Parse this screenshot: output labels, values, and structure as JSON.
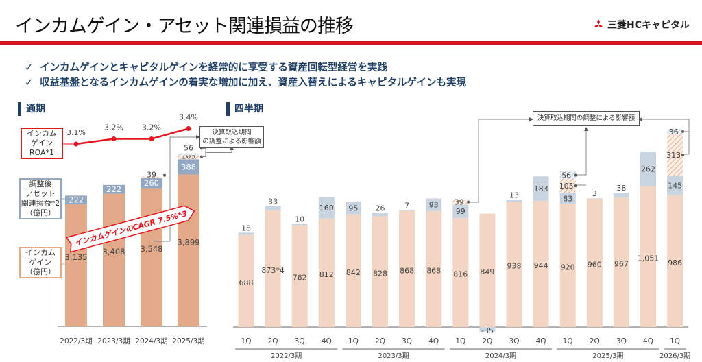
{
  "header": {
    "title": "インカムゲイン・アセット関連損益の推移",
    "logo_text": "三菱HCキャピタル"
  },
  "bullets": [
    "インカムゲインとキャピタルゲインを経常的に享受する資産回転型経営を実践",
    "収益基盤となるインカムゲインの着実な増加に加え、資産入替えによるキャピタルゲインも実現"
  ],
  "sections": {
    "annual": "通期",
    "quarterly": "四半期"
  },
  "legend": {
    "roa": [
      "インカム",
      "ゲイン",
      "ROA*1"
    ],
    "adjusted": [
      "調整後",
      "アセット",
      "関連損益*2",
      "（億円）"
    ],
    "income": [
      "インカム",
      "ゲイン",
      "（億円）"
    ]
  },
  "callouts": {
    "annual": [
      "決算取込期間",
      "の調整による影響額"
    ],
    "quarterly": "決算取込期間の調整による影響額"
  },
  "cagr_label": "インカムゲインのCAGR 7.5%*3",
  "colors": {
    "income_annual": "#e2aa88",
    "adjusted_annual": "#93a9c3",
    "income_q": "#f2d5c3",
    "adjusted_q": "#c8d5e1",
    "roa": "#e8141e",
    "accent": "#1f3f66"
  },
  "chart_data": [
    {
      "type": "bar",
      "title": "通期",
      "stacked": true,
      "categories": [
        "2022/3期",
        "2023/3期",
        "2024/3期",
        "2025/3期"
      ],
      "series": [
        {
          "name": "インカムゲイン（億円）",
          "values": [
            3135,
            3408,
            3548,
            3899
          ],
          "labels": [
            "3,135",
            "3,408",
            "3,548",
            "3,899"
          ]
        },
        {
          "name": "調整後アセット関連損益（億円）",
          "values": [
            222,
            222,
            260,
            388
          ]
        },
        {
          "name": "決算取込期間の調整による影響額（インカム）",
          "values": [
            0,
            0,
            39,
            105
          ]
        },
        {
          "name": "決算取込期間の調整による影響額（アセット）",
          "values": [
            0,
            0,
            0,
            56
          ]
        }
      ],
      "line": {
        "name": "インカムゲインROA",
        "values": [
          3.1,
          3.2,
          3.2,
          3.4
        ],
        "labels": [
          "3.1%",
          "3.2%",
          "3.2%",
          "3.4%"
        ]
      }
    },
    {
      "type": "bar",
      "title": "四半期",
      "stacked": true,
      "categories": [
        "1Q",
        "2Q",
        "3Q",
        "4Q",
        "1Q",
        "2Q",
        "3Q",
        "4Q",
        "1Q",
        "2Q",
        "3Q",
        "4Q",
        "1Q",
        "2Q",
        "3Q",
        "4Q",
        "1Q"
      ],
      "groups": [
        {
          "label": "2022/3期",
          "count": 4
        },
        {
          "label": "2023/3期",
          "count": 4
        },
        {
          "label": "2024/3期",
          "count": 4
        },
        {
          "label": "2025/3期",
          "count": 4
        },
        {
          "label": "2026/3期",
          "count": 1
        }
      ],
      "series": [
        {
          "name": "インカムゲイン",
          "values": [
            688,
            873,
            762,
            812,
            842,
            828,
            868,
            868,
            816,
            849,
            938,
            944,
            920,
            960,
            967,
            1051,
            986
          ],
          "labels": [
            "688",
            "873*4",
            "762",
            "812",
            "842",
            "828",
            "868",
            "868",
            "816",
            "849",
            "938",
            "944",
            "920",
            "960",
            "967",
            "1,051",
            "986"
          ]
        },
        {
          "name": "調整後アセット関連損益",
          "values": [
            18,
            33,
            10,
            160,
            95,
            26,
            7,
            93,
            99,
            -35,
            13,
            183,
            83,
            3,
            38,
            262,
            145
          ]
        },
        {
          "name": "調整影響額（インカム）",
          "values": [
            0,
            0,
            0,
            0,
            0,
            0,
            0,
            0,
            39,
            0,
            0,
            0,
            105,
            0,
            0,
            0,
            313
          ]
        },
        {
          "name": "調整影響額（アセット）",
          "values": [
            0,
            0,
            0,
            0,
            0,
            0,
            0,
            0,
            0,
            0,
            0,
            0,
            56,
            0,
            0,
            0,
            36
          ]
        }
      ]
    }
  ]
}
